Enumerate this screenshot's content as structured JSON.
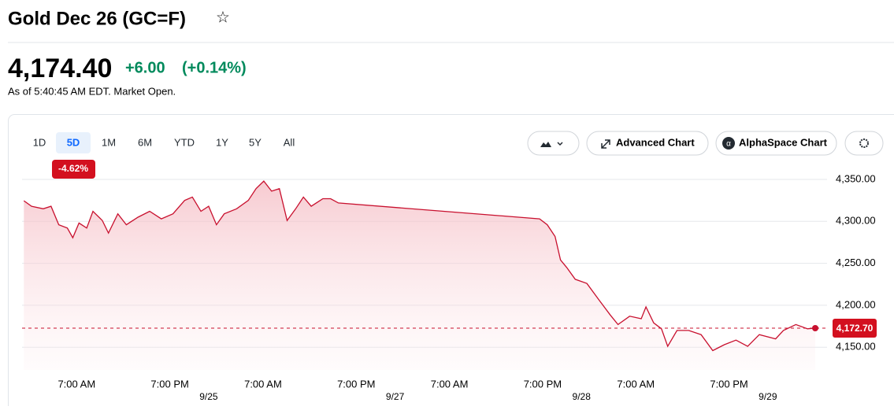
{
  "header": {
    "title": "Gold Dec 26 (GC=F)"
  },
  "quote": {
    "price": "4,174.40",
    "change": "+6.00",
    "change_pct": "(+0.14%)",
    "as_of": "As of 5:40:45 AM EDT. Market Open."
  },
  "ranges": {
    "items": [
      "1D",
      "5D",
      "1M",
      "6M",
      "YTD",
      "1Y",
      "5Y",
      "All"
    ],
    "selected_index": 1,
    "badge": "-4.62%"
  },
  "buttons": {
    "advanced": "Advanced Chart",
    "alphaspace": "AlphaSpace Chart"
  },
  "chart_data": {
    "type": "area",
    "color": "#c8102e",
    "x": [
      0.2,
      1.2,
      2.7,
      3.7,
      4.7,
      5.8,
      6.5,
      7.3,
      8.3,
      9.1,
      10.3,
      11.1,
      12.3,
      13.4,
      14.9,
      16.4,
      17.9,
      19.4,
      20.9,
      21.9,
      23,
      24,
      25,
      26,
      27.6,
      29.1,
      30.1,
      31.1,
      32.1,
      33.1,
      34.1,
      35.2,
      36.2,
      37.2,
      38.7,
      39.7,
      40.7,
      66.6,
      67.6,
      68.6,
      69.3,
      70.1,
      71.2,
      72.7,
      74.2,
      75.7,
      76.7,
      78.2,
      79.7,
      80.3,
      81.3,
      82.3,
      83.1,
      84.3,
      85.8,
      87.4,
      88.9,
      90.4,
      91.9,
      93.4,
      94.9,
      97,
      98,
      99.6,
      101.1,
      102.1
    ],
    "values": [
      4324.6,
      4318,
      4315,
      4318,
      4296,
      4292,
      4280.5,
      4298,
      4292,
      4312,
      4301,
      4286,
      4309,
      4296,
      4305,
      4312,
      4303,
      4309,
      4325,
      4329,
      4312,
      4318,
      4296,
      4309,
      4315,
      4325,
      4339,
      4348,
      4336,
      4339,
      4301,
      4315,
      4329,
      4318,
      4327,
      4327,
      4322,
      4303,
      4296,
      4282,
      4254,
      4245,
      4231,
      4226,
      4207,
      4188.5,
      4177,
      4187,
      4184,
      4198,
      4179,
      4172,
      4151,
      4170,
      4170,
      4165,
      4146,
      4153,
      4158.5,
      4151,
      4165,
      4160,
      4170,
      4177,
      4172,
      4172.7
    ],
    "xlim": [
      0,
      103
    ],
    "ylim": [
      4123,
      4350
    ],
    "yticks": [
      {
        "value": 4150,
        "label": "4,150.00"
      },
      {
        "value": 4200,
        "label": "4,200.00"
      },
      {
        "value": 4250,
        "label": "4,250.00"
      },
      {
        "value": 4300,
        "label": "4,300.00"
      },
      {
        "value": 4350,
        "label": "4,350.00"
      }
    ],
    "xticks": [
      {
        "value": 7,
        "label": "7:00 AM"
      },
      {
        "value": 19,
        "label": "7:00 PM"
      },
      {
        "value": 31,
        "label": "7:00 AM"
      },
      {
        "value": 43,
        "label": "7:00 PM"
      },
      {
        "value": 55,
        "label": "7:00 AM"
      },
      {
        "value": 67,
        "label": "7:00 PM"
      },
      {
        "value": 79,
        "label": "7:00 AM"
      },
      {
        "value": 91,
        "label": "7:00 PM"
      }
    ],
    "xdate_ticks": [
      {
        "value": 24,
        "label": "9/25"
      },
      {
        "value": 48,
        "label": "9/27"
      },
      {
        "value": 72,
        "label": "9/28"
      },
      {
        "value": 96,
        "label": "9/29"
      }
    ],
    "current": {
      "value": 4172.7,
      "label": "4,172.70"
    },
    "grid": true
  }
}
